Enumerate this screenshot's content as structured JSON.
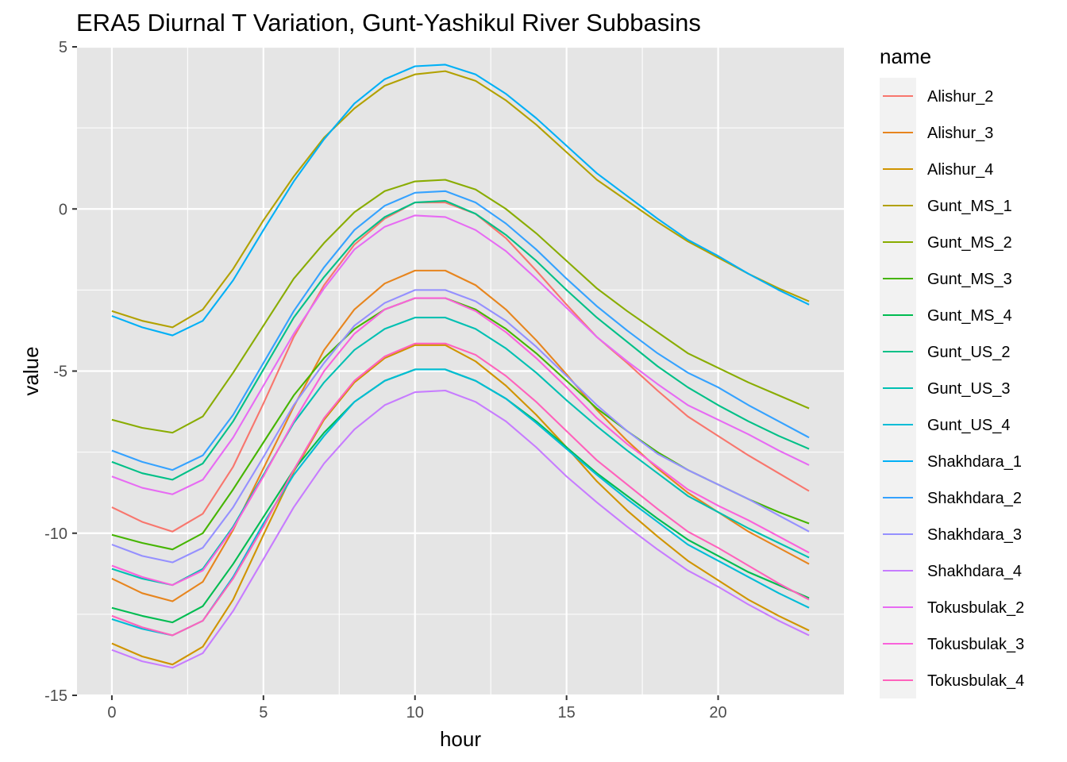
{
  "chart_data": {
    "type": "line",
    "title": "ERA5 Diurnal T Variation, Gunt-Yashikul River Subbasins",
    "xlabel": "hour",
    "ylabel": "value",
    "xlim": [
      -1.15,
      24.15
    ],
    "ylim": [
      -15.0,
      5.0
    ],
    "x_ticks": [
      0,
      5,
      10,
      15,
      20
    ],
    "y_ticks": [
      -15,
      -10,
      -5,
      0,
      5
    ],
    "x_tick_labels": [
      "0",
      "5",
      "10",
      "15",
      "20"
    ],
    "y_tick_labels": [
      "-15",
      "-10",
      "-5",
      "0",
      "5"
    ],
    "legend_title": "name",
    "legend_position": "right",
    "grid": true,
    "panel_background": "#e5e5e5",
    "grid_color": "#ffffff",
    "x": [
      0,
      1,
      2,
      3,
      4,
      5,
      6,
      7,
      8,
      9,
      10,
      11,
      12,
      13,
      14,
      15,
      16,
      17,
      18,
      19,
      20,
      21,
      22,
      23
    ],
    "series": [
      {
        "name": "Alishur_2",
        "color": "#F8766D",
        "values": [
          -9.2,
          -9.65,
          -9.95,
          -9.4,
          -7.95,
          -6.0,
          -3.95,
          -2.35,
          -1.1,
          -0.3,
          0.2,
          0.2,
          -0.15,
          -0.9,
          -1.9,
          -2.95,
          -3.95,
          -4.75,
          -5.6,
          -6.4,
          -7.0,
          -7.6,
          -8.15,
          -8.7
        ]
      },
      {
        "name": "Alishur_3",
        "color": "#E7851E",
        "values": [
          -11.4,
          -11.85,
          -12.1,
          -11.5,
          -9.9,
          -8.0,
          -6.1,
          -4.35,
          -3.1,
          -2.3,
          -1.9,
          -1.9,
          -2.35,
          -3.1,
          -4.05,
          -5.1,
          -6.2,
          -7.15,
          -8.0,
          -8.75,
          -9.35,
          -9.95,
          -10.45,
          -10.95
        ]
      },
      {
        "name": "Alishur_4",
        "color": "#D09400",
        "values": [
          -13.4,
          -13.8,
          -14.05,
          -13.5,
          -12.05,
          -10.05,
          -8.1,
          -6.5,
          -5.35,
          -4.6,
          -4.2,
          -4.2,
          -4.7,
          -5.45,
          -6.35,
          -7.35,
          -8.4,
          -9.3,
          -10.1,
          -10.85,
          -11.45,
          -12.05,
          -12.55,
          -13.0
        ]
      },
      {
        "name": "Gunt_MS_1",
        "color": "#B2A100",
        "values": [
          -3.15,
          -3.45,
          -3.65,
          -3.1,
          -1.85,
          -0.35,
          1.0,
          2.2,
          3.1,
          3.8,
          4.15,
          4.25,
          3.95,
          3.35,
          2.6,
          1.75,
          0.9,
          0.25,
          -0.4,
          -1.0,
          -1.5,
          -2.0,
          -2.45,
          -2.85
        ]
      },
      {
        "name": "Gunt_MS_2",
        "color": "#89AC00",
        "values": [
          -6.5,
          -6.75,
          -6.9,
          -6.4,
          -5.05,
          -3.6,
          -2.15,
          -1.05,
          -0.1,
          0.55,
          0.85,
          0.9,
          0.6,
          0.0,
          -0.75,
          -1.6,
          -2.45,
          -3.15,
          -3.8,
          -4.45,
          -4.9,
          -5.35,
          -5.75,
          -6.15
        ]
      },
      {
        "name": "Gunt_MS_3",
        "color": "#45B500",
        "values": [
          -10.05,
          -10.3,
          -10.5,
          -10.0,
          -8.65,
          -7.2,
          -5.75,
          -4.6,
          -3.7,
          -3.1,
          -2.75,
          -2.75,
          -3.1,
          -3.7,
          -4.45,
          -5.3,
          -6.15,
          -6.85,
          -7.5,
          -8.05,
          -8.5,
          -8.95,
          -9.35,
          -9.7
        ]
      },
      {
        "name": "Gunt_MS_4",
        "color": "#00BC51",
        "values": [
          -12.3,
          -12.55,
          -12.75,
          -12.25,
          -10.95,
          -9.5,
          -8.05,
          -6.9,
          -5.95,
          -5.3,
          -4.95,
          -4.95,
          -5.3,
          -5.85,
          -6.55,
          -7.35,
          -8.15,
          -8.85,
          -9.55,
          -10.2,
          -10.7,
          -11.2,
          -11.6,
          -12.0
        ]
      },
      {
        "name": "Gunt_US_2",
        "color": "#00C087",
        "values": [
          -7.8,
          -8.15,
          -8.35,
          -7.85,
          -6.55,
          -4.95,
          -3.35,
          -2.1,
          -1.0,
          -0.25,
          0.2,
          0.25,
          -0.15,
          -0.8,
          -1.6,
          -2.5,
          -3.35,
          -4.1,
          -4.85,
          -5.5,
          -6.05,
          -6.55,
          -7.0,
          -7.4
        ]
      },
      {
        "name": "Gunt_US_3",
        "color": "#00C0B2",
        "values": [
          -11.1,
          -11.4,
          -11.6,
          -11.1,
          -9.8,
          -8.2,
          -6.6,
          -5.35,
          -4.35,
          -3.7,
          -3.35,
          -3.35,
          -3.7,
          -4.3,
          -5.05,
          -5.9,
          -6.7,
          -7.45,
          -8.15,
          -8.85,
          -9.35,
          -9.85,
          -10.3,
          -10.75
        ]
      },
      {
        "name": "Gunt_US_4",
        "color": "#00BCD6",
        "values": [
          -12.65,
          -12.95,
          -13.15,
          -12.7,
          -11.35,
          -9.7,
          -8.2,
          -7.0,
          -5.95,
          -5.3,
          -4.95,
          -4.95,
          -5.3,
          -5.85,
          -6.6,
          -7.4,
          -8.2,
          -8.95,
          -9.65,
          -10.35,
          -10.85,
          -11.35,
          -11.85,
          -12.3
        ]
      },
      {
        "name": "Shakhdara_1",
        "color": "#00B0F6",
        "values": [
          -3.3,
          -3.65,
          -3.9,
          -3.45,
          -2.2,
          -0.65,
          0.85,
          2.15,
          3.25,
          4.0,
          4.4,
          4.45,
          4.15,
          3.55,
          2.8,
          1.95,
          1.1,
          0.4,
          -0.3,
          -0.95,
          -1.45,
          -2.0,
          -2.5,
          -2.95
        ]
      },
      {
        "name": "Shakhdara_2",
        "color": "#35A2FF",
        "values": [
          -7.45,
          -7.8,
          -8.05,
          -7.6,
          -6.35,
          -4.75,
          -3.15,
          -1.8,
          -0.65,
          0.1,
          0.5,
          0.55,
          0.2,
          -0.45,
          -1.25,
          -2.15,
          -3.0,
          -3.75,
          -4.45,
          -5.05,
          -5.5,
          -6.05,
          -6.55,
          -7.05
        ]
      },
      {
        "name": "Shakhdara_3",
        "color": "#9590FF",
        "values": [
          -10.35,
          -10.7,
          -10.9,
          -10.45,
          -9.2,
          -7.65,
          -6.05,
          -4.75,
          -3.6,
          -2.9,
          -2.5,
          -2.5,
          -2.85,
          -3.45,
          -4.25,
          -5.15,
          -6.05,
          -6.85,
          -7.55,
          -8.05,
          -8.5,
          -8.95,
          -9.45,
          -9.95
        ]
      },
      {
        "name": "Shakhdara_4",
        "color": "#C77CFF",
        "values": [
          -13.6,
          -13.95,
          -14.15,
          -13.7,
          -12.4,
          -10.8,
          -9.2,
          -7.85,
          -6.8,
          -6.05,
          -5.65,
          -5.6,
          -5.95,
          -6.55,
          -7.35,
          -8.25,
          -9.05,
          -9.8,
          -10.5,
          -11.15,
          -11.65,
          -12.2,
          -12.7,
          -13.15
        ]
      },
      {
        "name": "Tokusbulak_2",
        "color": "#E76BF3",
        "values": [
          -8.25,
          -8.6,
          -8.8,
          -8.35,
          -7.05,
          -5.45,
          -3.85,
          -2.45,
          -1.25,
          -0.55,
          -0.2,
          -0.25,
          -0.65,
          -1.3,
          -2.15,
          -3.05,
          -3.95,
          -4.7,
          -5.4,
          -6.05,
          -6.5,
          -6.95,
          -7.45,
          -7.9
        ]
      },
      {
        "name": "Tokusbulak_3",
        "color": "#FA62DB",
        "values": [
          -11.0,
          -11.35,
          -11.6,
          -11.15,
          -9.85,
          -8.25,
          -6.55,
          -5.0,
          -3.85,
          -3.1,
          -2.75,
          -2.75,
          -3.15,
          -3.8,
          -4.6,
          -5.5,
          -6.45,
          -7.25,
          -7.95,
          -8.65,
          -9.15,
          -9.6,
          -10.1,
          -10.6
        ]
      },
      {
        "name": "Tokusbulak_4",
        "color": "#FF62BC",
        "values": [
          -12.55,
          -12.9,
          -13.15,
          -12.7,
          -11.4,
          -9.8,
          -8.05,
          -6.45,
          -5.3,
          -4.55,
          -4.15,
          -4.15,
          -4.5,
          -5.15,
          -5.95,
          -6.85,
          -7.75,
          -8.5,
          -9.25,
          -9.95,
          -10.45,
          -11.0,
          -11.55,
          -12.05
        ]
      }
    ]
  }
}
